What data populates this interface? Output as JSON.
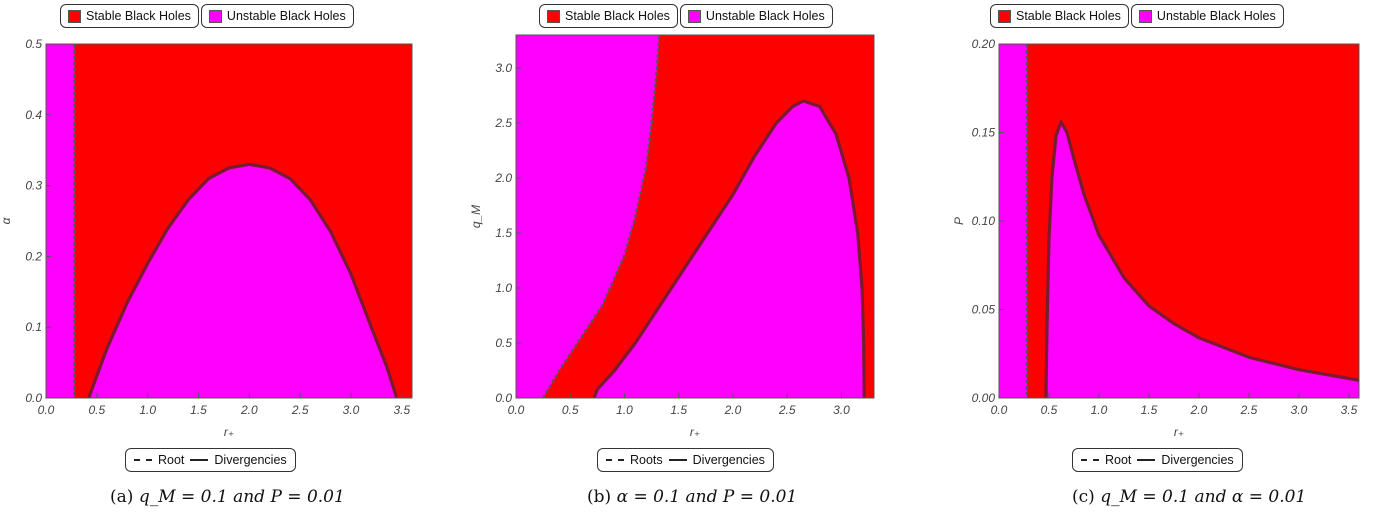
{
  "legend": {
    "stable": "Stable Black Holes",
    "unstable": "Unstable Black Holes",
    "colors": {
      "stable": "#ff0000",
      "unstable": "#ff00ff",
      "curve": "#7a1a30"
    }
  },
  "chart_data": [
    {
      "type": "region_plot",
      "xlabel": "r₊",
      "ylabel": "α",
      "xlim": [
        0.0,
        3.6
      ],
      "ylim": [
        0.0,
        0.5
      ],
      "xticks": [
        "0.0",
        "0.5",
        "1.0",
        "1.5",
        "2.0",
        "2.5",
        "3.0",
        "3.5"
      ],
      "yticks": [
        "0.0",
        "0.1",
        "0.2",
        "0.3",
        "0.4",
        "0.5"
      ],
      "root_x": 0.28,
      "divergence_curve": [
        [
          0.42,
          0.0
        ],
        [
          0.6,
          0.07
        ],
        [
          0.8,
          0.135
        ],
        [
          1.0,
          0.19
        ],
        [
          1.2,
          0.24
        ],
        [
          1.4,
          0.28
        ],
        [
          1.6,
          0.31
        ],
        [
          1.8,
          0.325
        ],
        [
          2.0,
          0.33
        ],
        [
          2.2,
          0.325
        ],
        [
          2.4,
          0.31
        ],
        [
          2.6,
          0.28
        ],
        [
          2.8,
          0.235
        ],
        [
          3.0,
          0.175
        ],
        [
          3.2,
          0.1
        ],
        [
          3.35,
          0.045
        ],
        [
          3.45,
          0.0
        ]
      ],
      "line_legend": [
        "Root",
        "Divergencies"
      ],
      "caption": {
        "label": "(a)",
        "text": "q_M = 0.1 and P = 0.01"
      }
    },
    {
      "type": "region_plot",
      "xlabel": "r₊",
      "ylabel": "q_M",
      "xlim": [
        0.0,
        3.3
      ],
      "ylim": [
        0.0,
        3.3
      ],
      "xticks": [
        "0.0",
        "0.5",
        "1.0",
        "1.5",
        "2.0",
        "2.5",
        "3.0"
      ],
      "yticks": [
        "0.0",
        "0.5",
        "1.0",
        "1.5",
        "2.0",
        "2.5",
        "3.0"
      ],
      "roots_curve": [
        [
          0.25,
          0.0
        ],
        [
          0.4,
          0.25
        ],
        [
          0.6,
          0.55
        ],
        [
          0.8,
          0.85
        ],
        [
          1.0,
          1.3
        ],
        [
          1.1,
          1.65
        ],
        [
          1.2,
          2.1
        ],
        [
          1.25,
          2.5
        ],
        [
          1.3,
          3.0
        ],
        [
          1.32,
          3.3
        ]
      ],
      "divergence_curve": [
        [
          0.72,
          0.0
        ],
        [
          0.75,
          0.08
        ],
        [
          0.9,
          0.24
        ],
        [
          1.1,
          0.5
        ],
        [
          1.4,
          0.95
        ],
        [
          1.7,
          1.4
        ],
        [
          2.0,
          1.85
        ],
        [
          2.2,
          2.2
        ],
        [
          2.4,
          2.5
        ],
        [
          2.55,
          2.65
        ],
        [
          2.65,
          2.7
        ],
        [
          2.8,
          2.65
        ],
        [
          2.95,
          2.4
        ],
        [
          3.07,
          2.0
        ],
        [
          3.15,
          1.5
        ],
        [
          3.19,
          1.0
        ],
        [
          3.205,
          0.5
        ],
        [
          3.21,
          0.0
        ]
      ],
      "line_legend": [
        "Roots",
        "Divergencies"
      ],
      "caption": {
        "label": "(b)",
        "text": "α = 0.1 and P = 0.01"
      }
    },
    {
      "type": "region_plot",
      "xlabel": "r₊",
      "ylabel": "P",
      "xlim": [
        0.0,
        3.6
      ],
      "ylim": [
        0.0,
        0.2
      ],
      "xticks": [
        "0.0",
        "0.5",
        "1.0",
        "1.5",
        "2.0",
        "2.5",
        "3.0",
        "3.5"
      ],
      "yticks": [
        "0.00",
        "0.05",
        "0.10",
        "0.15",
        "0.20"
      ],
      "root_x": 0.28,
      "divergence_curve": [
        [
          0.47,
          0.0
        ],
        [
          0.48,
          0.04
        ],
        [
          0.5,
          0.09
        ],
        [
          0.53,
          0.125
        ],
        [
          0.57,
          0.148
        ],
        [
          0.62,
          0.156
        ],
        [
          0.68,
          0.15
        ],
        [
          0.75,
          0.135
        ],
        [
          0.85,
          0.115
        ],
        [
          1.0,
          0.092
        ],
        [
          1.25,
          0.068
        ],
        [
          1.5,
          0.052
        ],
        [
          1.75,
          0.042
        ],
        [
          2.0,
          0.034
        ],
        [
          2.5,
          0.023
        ],
        [
          3.0,
          0.016
        ],
        [
          3.6,
          0.01
        ]
      ],
      "line_legend": [
        "Root",
        "Divergencies"
      ],
      "caption": {
        "label": "(c)",
        "text": "q_M = 0.1 and α = 0.01"
      }
    }
  ]
}
